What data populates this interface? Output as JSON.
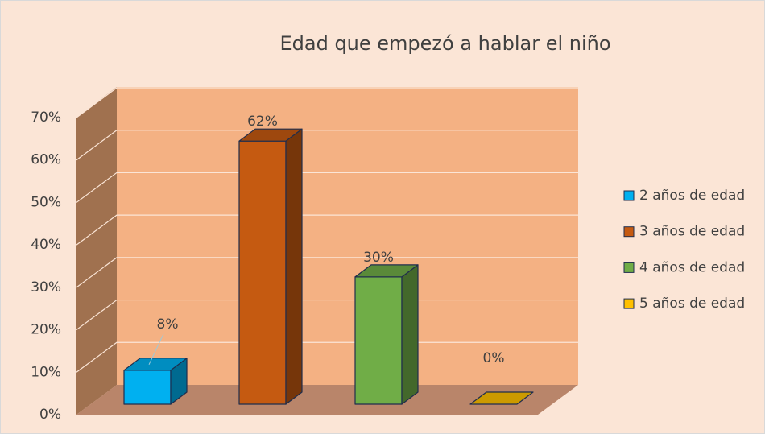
{
  "chart_data": {
    "type": "bar3d",
    "title": "Edad que empezó a hablar el niño",
    "series": [
      {
        "name": "2 años de edad",
        "color": "#00b0f0",
        "values": [
          8
        ],
        "value_labels": [
          "8%"
        ]
      },
      {
        "name": "3 años de edad",
        "color": "#c55a11",
        "values": [
          62
        ],
        "value_labels": [
          "62%"
        ]
      },
      {
        "name": "4 años de edad",
        "color": "#70ad47",
        "values": [
          30
        ],
        "value_labels": [
          "30%"
        ]
      },
      {
        "name": "5 años de edad",
        "color": "#ffc000",
        "values": [
          0
        ],
        "value_labels": [
          "0%"
        ]
      }
    ],
    "ylim": [
      0,
      70
    ],
    "yticks": [
      {
        "value": 0,
        "label": "0%"
      },
      {
        "value": 10,
        "label": "10%"
      },
      {
        "value": 20,
        "label": "20%"
      },
      {
        "value": 30,
        "label": "30%"
      },
      {
        "value": 40,
        "label": "40%"
      },
      {
        "value": 50,
        "label": "50%"
      },
      {
        "value": 60,
        "label": "60%"
      },
      {
        "value": 70,
        "label": "70%"
      }
    ],
    "grid": true,
    "legend": "right"
  }
}
